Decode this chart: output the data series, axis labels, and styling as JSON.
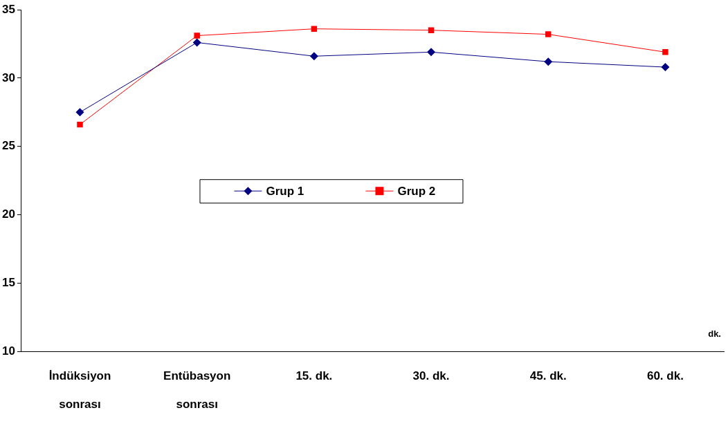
{
  "chart_data": {
    "type": "line",
    "xlabel": "dk.",
    "categories": [
      "İndüksiyon\nsonrası",
      "Entübasyon\nsonrası",
      "15. dk.",
      "30. dk.",
      "45. dk.",
      "60. dk."
    ],
    "series": [
      {
        "name": "Grup 1",
        "color": "#000080",
        "marker": "diamond",
        "values": [
          27.5,
          32.6,
          31.6,
          31.9,
          31.2,
          30.8
        ]
      },
      {
        "name": "Grup 2",
        "color": "#ff0000",
        "marker": "square",
        "values": [
          26.6,
          33.1,
          33.6,
          33.5,
          33.2,
          31.9
        ]
      }
    ],
    "ylim": [
      10,
      35
    ],
    "yticks": [
      10,
      15,
      20,
      25,
      30,
      35
    ],
    "grid": false,
    "legend": "center"
  }
}
